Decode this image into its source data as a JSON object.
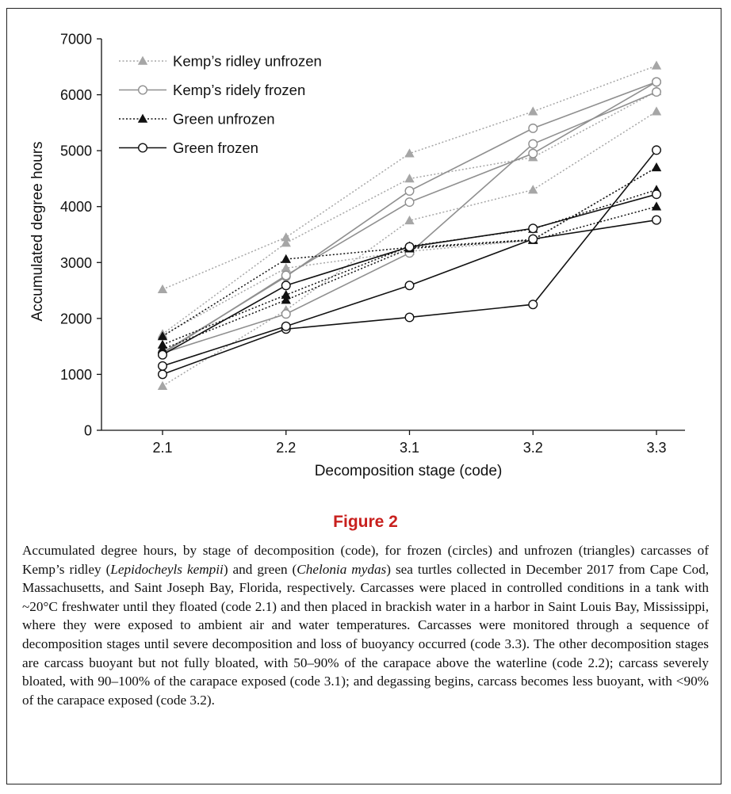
{
  "figure": {
    "title": "Figure 2",
    "caption_parts": [
      {
        "t": "Accumulated degree hours, by stage of decomposition (code), for frozen (circles) and unfrozen (triangles) carcasses of Kemp’s ridley (",
        "i": false
      },
      {
        "t": "Lepidocheyls kempii",
        "i": true
      },
      {
        "t": ") and green (",
        "i": false
      },
      {
        "t": "Chelonia mydas",
        "i": true
      },
      {
        "t": ") sea turtles collected in December 2017 from Cape Cod, Massachusetts, and Saint Joseph Bay, Florida, respectively. Carcasses were placed in controlled conditions in a tank with ~20°C freshwater until they floated (code 2.1) and then placed in brackish water in a harbor in Saint Louis Bay, Mississippi, where they were exposed to ambient air and water temperatures. Carcasses were monitored through a sequence of decomposition stages until severe decomposition and loss of buoyancy occurred (code 3.3). The other decomposition stages are carcass buoyant but not fully bloated, with 50–90% of the carapace above the waterline (code 2.2); carcass severely bloated, with 90–100% of the carapace exposed (code 3.1); and degassing begins, carcass becomes less buoyant, with <90% of the carapace exposed (code 3.2).",
        "i": false
      }
    ]
  },
  "chart_data": {
    "type": "line",
    "title": "",
    "xlabel": "Decomposition stage (code)",
    "ylabel": "Accumulated degree hours",
    "categories": [
      "2.1",
      "2.2",
      "3.1",
      "3.2",
      "3.3"
    ],
    "ylim": [
      0,
      7000
    ],
    "yticks": [
      0,
      1000,
      2000,
      3000,
      4000,
      5000,
      6000,
      7000
    ],
    "grid": false,
    "legend_position": "top-left",
    "groups": [
      {
        "name": "Kemp’s ridley unfrozen",
        "marker": "triangle-filled",
        "color": "#a6a6a6",
        "line": "dotted",
        "series": [
          [
            2520,
            3450,
            4950,
            5700,
            6520
          ],
          [
            1720,
            3350,
            4500,
            4880,
            6060
          ],
          [
            790,
            2150,
            3750,
            4300,
            5700
          ],
          [
            1700,
            2900,
            3200,
            3400,
            4700
          ]
        ]
      },
      {
        "name": "Kemp’s ridely frozen",
        "marker": "circle-open",
        "color": "#8f8f8f",
        "line": "solid",
        "series": [
          [
            1390,
            2750,
            4280,
            5400,
            6230
          ],
          [
            1370,
            2770,
            4080,
            4950,
            6230
          ],
          [
            1380,
            2080,
            3170,
            5120,
            6050
          ]
        ]
      },
      {
        "name": "Green unfrozen",
        "marker": "triangle-filled",
        "color": "#111111",
        "line": "dotted",
        "series": [
          [
            1680,
            3060,
            3270,
            3410,
            4700
          ],
          [
            1530,
            2420,
            3290,
            3600,
            4300
          ],
          [
            1450,
            2330,
            3250,
            3400,
            4000
          ]
        ]
      },
      {
        "name": "Green frozen",
        "marker": "circle-open",
        "color": "#111111",
        "line": "solid",
        "series": [
          [
            1000,
            1810,
            2020,
            2250,
            5010
          ],
          [
            1150,
            1860,
            2590,
            3420,
            3760
          ],
          [
            1350,
            2590,
            3280,
            3610,
            4220
          ]
        ]
      }
    ]
  }
}
